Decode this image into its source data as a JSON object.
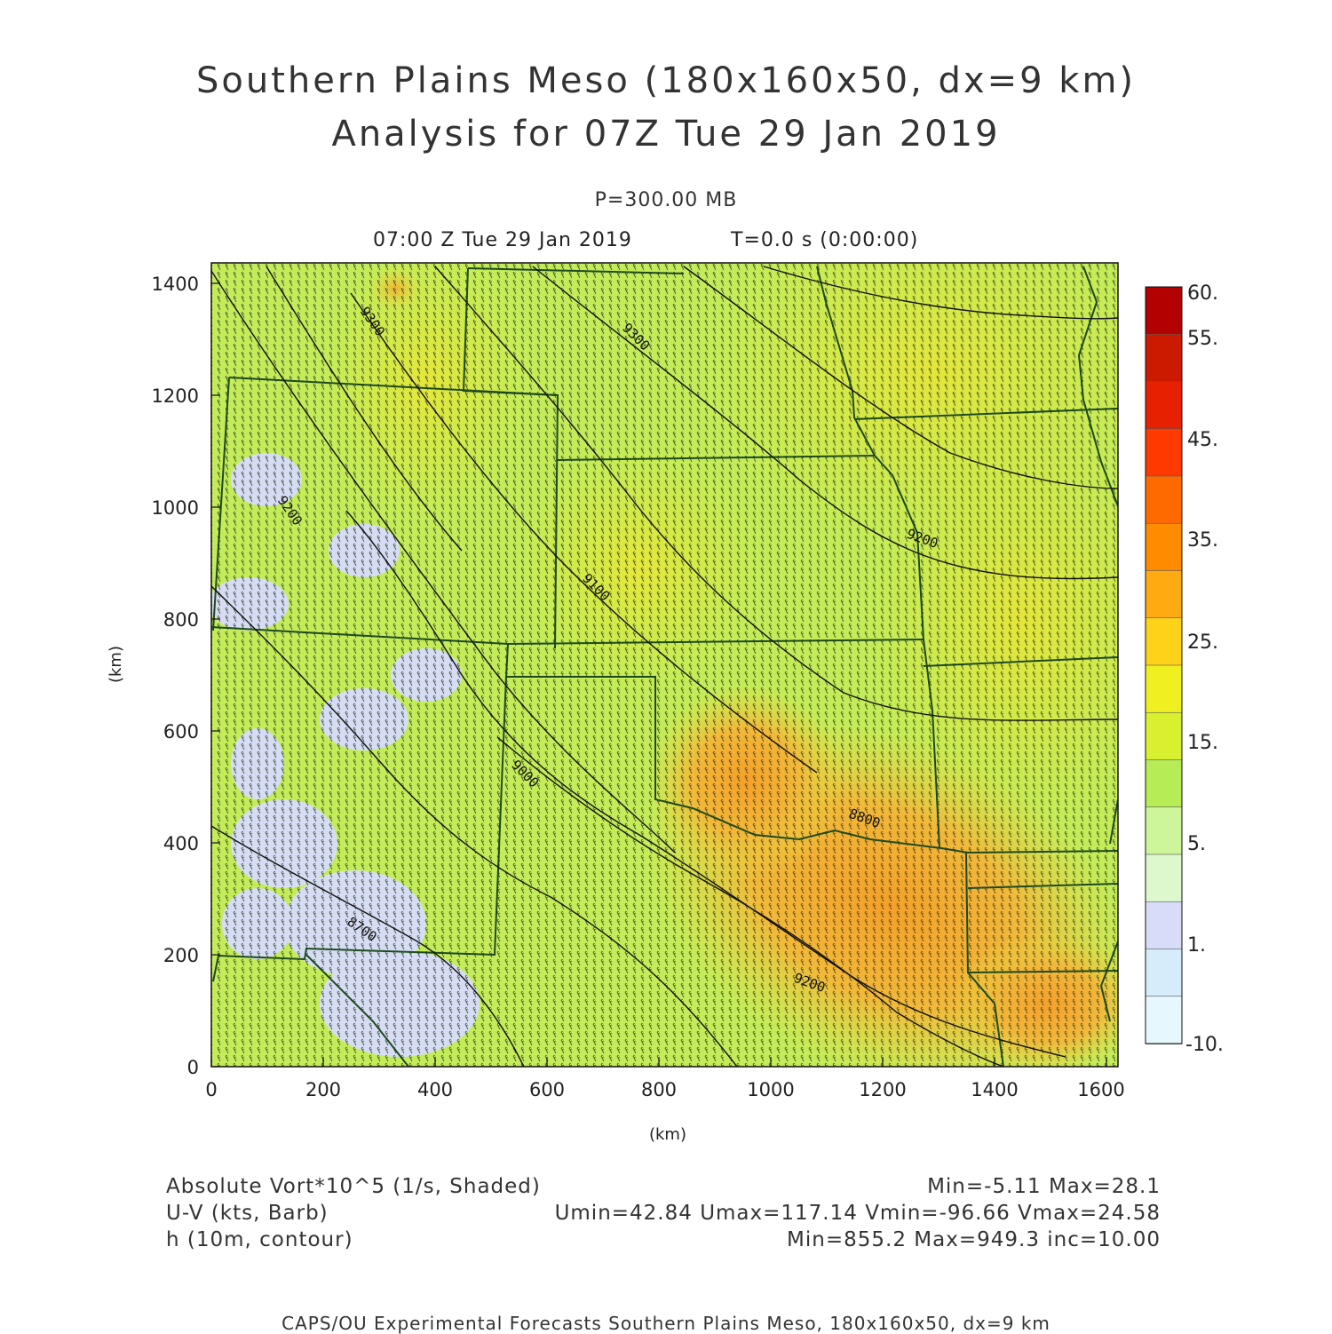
{
  "header": {
    "title_line1": "Southern Plains Meso (180x160x50, dx=9 km)",
    "title_line2": "Analysis for 07Z Tue 29 Jan 2019",
    "level": "P=300.00 MB",
    "time": "07:00 Z Tue 29 Jan 2019",
    "time_t": "T=0.0 s (0:00:00)"
  },
  "axes": {
    "x_ticks": [
      "0",
      "200",
      "400",
      "600",
      "800",
      "1000",
      "1200",
      "1400",
      "1600"
    ],
    "y_ticks": [
      "0",
      "200",
      "400",
      "600",
      "800",
      "1000",
      "1200",
      "1400"
    ],
    "x_label": "(km)",
    "y_label": "(km)",
    "x_range_km": [
      0,
      1620
    ],
    "y_range_km": [
      0,
      1440
    ]
  },
  "colorbar": {
    "labels": [
      "60.",
      "55.",
      "45.",
      "35.",
      "25.",
      "15.",
      "5.",
      "1.",
      "-10."
    ],
    "colors": [
      "#b30000",
      "#cc1a00",
      "#e62000",
      "#ff3a00",
      "#ff6a00",
      "#ff8c00",
      "#ffaa10",
      "#ffd21a",
      "#f0f020",
      "#d8f030",
      "#b6ec56",
      "#cdf59a",
      "#dcf8cc",
      "#d8dcf8",
      "#d6ecfb",
      "#e6f7fd"
    ]
  },
  "contour_labels": [
    "9300",
    "9300",
    "9200",
    "9200",
    "9100",
    "9000",
    "8800",
    "8700",
    "9200",
    "8700"
  ],
  "legend": {
    "line1_left": "Absolute Vort*10^5 (1/s, Shaded)",
    "line1_right": "Min=-5.11 Max=28.1",
    "line2_left": "U-V (kts, Barb)",
    "line2_right": "Umin=42.84 Umax=117.14 Vmin=-96.66 Vmax=24.58",
    "line3_left": "h (10m, contour)",
    "line3_right": "Min=855.2 Max=949.3 inc=10.00"
  },
  "footer": "CAPS/OU Experimental Forecasts  Southern Plains Meso, 180x160x50, dx=9 km"
}
